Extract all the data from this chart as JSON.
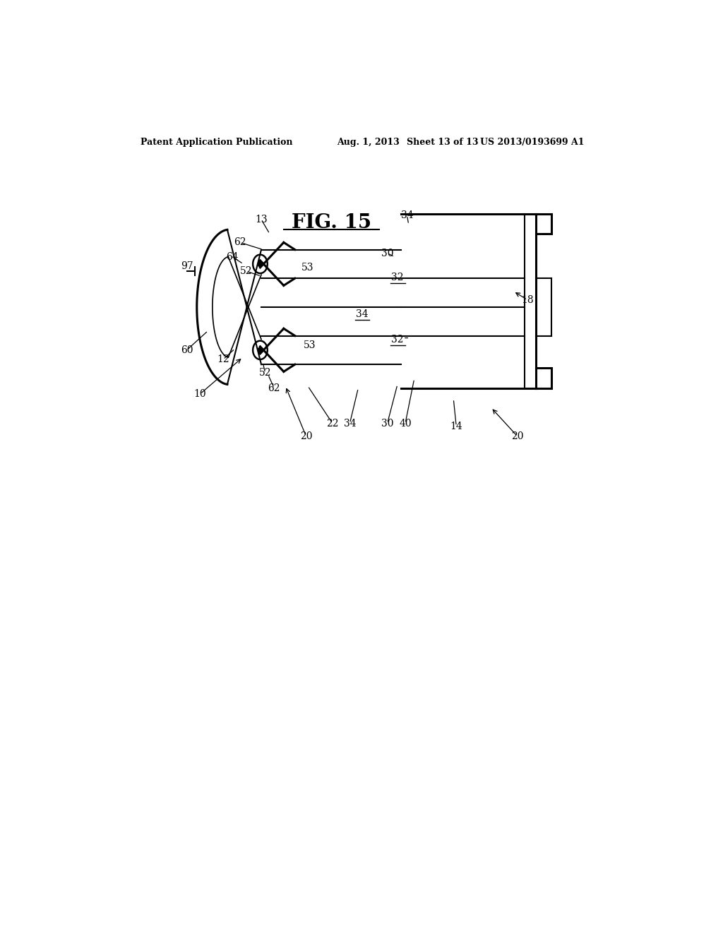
{
  "bg_color": "#ffffff",
  "header_text": "Patent Application Publication",
  "header_date": "Aug. 1, 2013",
  "header_sheet": "Sheet 13 of 13",
  "header_patent": "US 2013/0193699 A1",
  "fig_label": "FIG. 15"
}
